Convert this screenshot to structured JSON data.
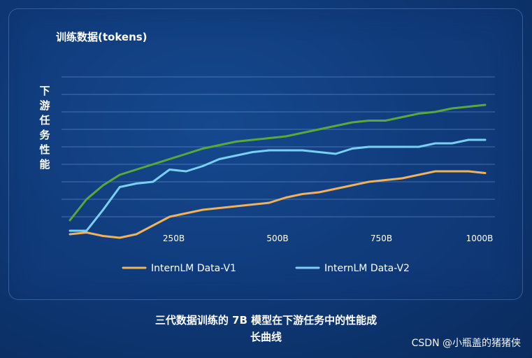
{
  "chart_data": {
    "type": "line",
    "title": "",
    "xlabel": "",
    "ylabel": "下游任务性能",
    "y_title": "训练数据(tokens)",
    "xlim": [
      0,
      1000
    ],
    "ylim": [
      0,
      100
    ],
    "x_tick_labels": [
      "250B",
      "500B",
      "750B",
      "1000B"
    ],
    "x_tick_values": [
      250,
      500,
      750,
      1000
    ],
    "y_grid_values": [
      8,
      18,
      28,
      38,
      48,
      58,
      68,
      78,
      88
    ],
    "x": [
      0,
      40,
      80,
      120,
      160,
      200,
      240,
      280,
      320,
      360,
      400,
      440,
      480,
      520,
      560,
      600,
      640,
      680,
      720,
      760,
      800,
      840,
      880,
      920,
      960,
      1000
    ],
    "series": [
      {
        "name": "InternLM Data-V1",
        "color": "#f0b25a",
        "values": [
          -2,
          -1,
          -3,
          -4,
          -2,
          3,
          8,
          10,
          12,
          13,
          14,
          15,
          16,
          19,
          21,
          22,
          24,
          26,
          28,
          29,
          30,
          32,
          34,
          34,
          34,
          33
        ]
      },
      {
        "name": "InternLM Data-V2",
        "color": "#7ad0f2",
        "values": [
          0,
          0,
          12,
          25,
          27,
          28,
          35,
          34,
          37,
          41,
          43,
          45,
          46,
          46,
          46,
          45,
          44,
          47,
          48,
          48,
          48,
          48,
          50,
          50,
          52,
          52
        ]
      },
      {
        "name": "",
        "color": "#5aa83c",
        "values": [
          6,
          18,
          26,
          32,
          35,
          38,
          41,
          44,
          47,
          49,
          51,
          52,
          53,
          54,
          56,
          58,
          60,
          62,
          63,
          63,
          65,
          67,
          68,
          70,
          71,
          72
        ]
      }
    ],
    "legend_position": "bottom"
  },
  "caption": {
    "line1": "三代数据训练的 7B 模型在下游任务中的性能成",
    "line2": "长曲线"
  },
  "watermark": "CSDN @小瓶盖的猪猪侠"
}
